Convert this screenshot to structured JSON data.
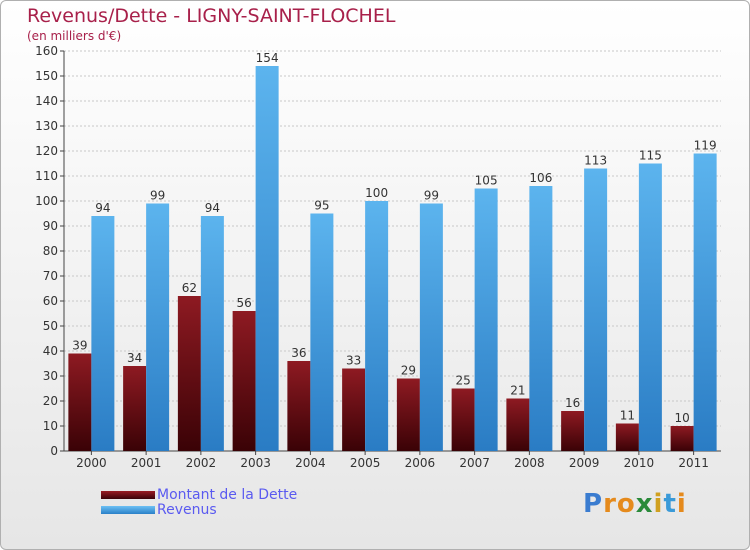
{
  "chart_data": {
    "type": "bar",
    "title": "Revenus/Dette - LIGNY-SAINT-FLOCHEL",
    "subtitle": "(en milliers d'€)",
    "categories": [
      "2000",
      "2001",
      "2002",
      "2003",
      "2004",
      "2005",
      "2006",
      "2007",
      "2008",
      "2009",
      "2010",
      "2011"
    ],
    "series": [
      {
        "name": "Montant de la Dette",
        "color": "#6b0a10",
        "values": [
          39,
          34,
          62,
          56,
          36,
          33,
          29,
          25,
          21,
          16,
          11,
          10
        ]
      },
      {
        "name": "Revenus",
        "color": "#4ea6e8",
        "values": [
          94,
          99,
          94,
          154,
          95,
          100,
          99,
          105,
          106,
          113,
          115,
          119
        ]
      }
    ],
    "ylim": [
      0,
      160
    ],
    "yticks": [
      0,
      10,
      20,
      30,
      40,
      50,
      60,
      70,
      80,
      90,
      100,
      110,
      120,
      130,
      140,
      150,
      160
    ],
    "grid": true,
    "legend": "bottom-left"
  },
  "logo": {
    "letters": [
      "P",
      "r",
      "o",
      "x",
      "i",
      "t",
      "i"
    ],
    "colors": [
      "#3a7cd0",
      "#e58a1c",
      "#e58a1c",
      "#2a8a3a",
      "#d0a020",
      "#3a9ad8",
      "#e58a1c"
    ]
  }
}
